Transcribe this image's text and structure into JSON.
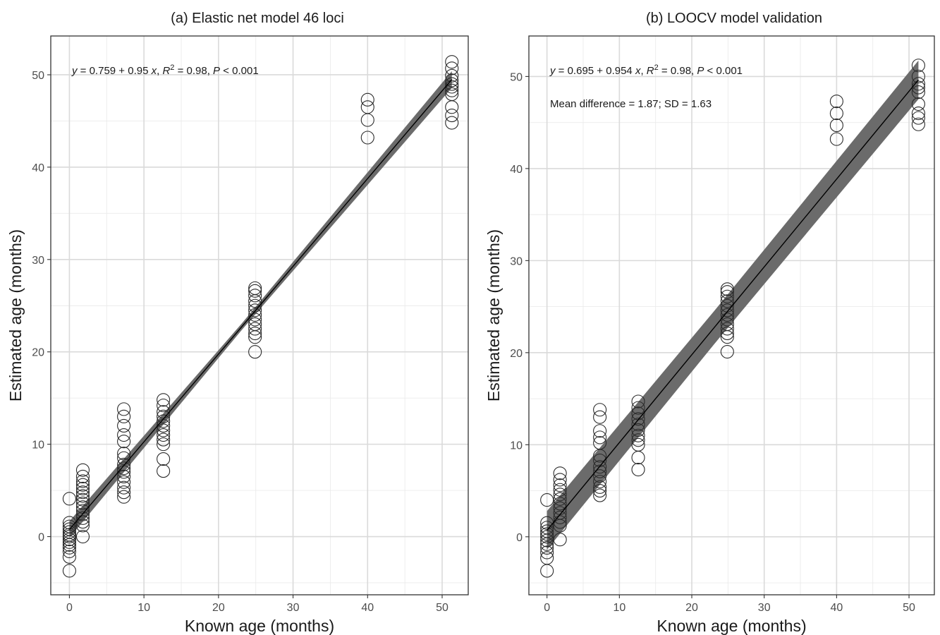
{
  "chart_data": [
    {
      "type": "scatter",
      "title": "(a) Elastic net model 46 loci",
      "xlabel": "Known age (months)",
      "ylabel": "Estimated age (months)",
      "xlim": [
        -2.5,
        53.5
      ],
      "ylim": [
        -6.3,
        54.2
      ],
      "x_ticks": [
        0,
        10,
        20,
        30,
        40,
        50
      ],
      "y_ticks": [
        0,
        10,
        20,
        30,
        40,
        50
      ],
      "grid": true,
      "annotations": [
        {
          "segments": [
            {
              "text": "y",
              "italic": true
            },
            {
              "text": " = 0.759 + 0.95 "
            },
            {
              "text": "x",
              "italic": true
            },
            {
              "text": ", "
            },
            {
              "text": "R",
              "italic": true
            },
            {
              "text": "2",
              "sup": true
            },
            {
              "text": " = 0.98, "
            },
            {
              "text": "P",
              "italic": true
            },
            {
              "text": " < 0.001"
            }
          ]
        }
      ],
      "fit": {
        "intercept": 0.759,
        "slope": 0.95,
        "x_range": [
          0,
          51.3
        ],
        "band_half_width": [
          0.35,
          0.9
        ]
      },
      "groups": [
        {
          "x": 0,
          "y": [
            4.1,
            1.5,
            1.1,
            0.8,
            0.5,
            0.2,
            0.0,
            -0.3,
            -0.6,
            -0.9,
            -1.2,
            -1.6,
            -2.2,
            -3.7
          ]
        },
        {
          "x": 1.8,
          "y": [
            7.2,
            6.5,
            6.0,
            5.6,
            5.2,
            4.8,
            4.4,
            4.0,
            3.6,
            3.2,
            2.8,
            2.4,
            2.0,
            1.6,
            1.2,
            0.0
          ]
        },
        {
          "x": 7.3,
          "y": [
            13.8,
            13.0,
            12.0,
            11.0,
            10.3,
            9.0,
            8.5,
            7.8,
            7.4,
            7.0,
            6.5,
            5.9,
            5.3,
            4.8,
            4.3
          ]
        },
        {
          "x": 12.6,
          "y": [
            14.8,
            14.2,
            13.5,
            13.0,
            12.5,
            12.0,
            11.5,
            11.0,
            10.5,
            10.0,
            8.4,
            7.1
          ]
        },
        {
          "x": 24.9,
          "y": [
            26.9,
            26.6,
            26.1,
            25.5,
            25.0,
            24.5,
            24.0,
            23.5,
            23.0,
            22.5,
            22.0,
            21.6,
            20.0
          ]
        },
        {
          "x": 40.0,
          "y": [
            47.3,
            46.5,
            45.1,
            43.2
          ]
        },
        {
          "x": 51.3,
          "y": [
            51.4,
            50.7,
            49.9,
            49.4,
            49.0,
            48.7,
            48.3,
            47.9,
            46.5,
            45.6,
            44.8
          ]
        }
      ]
    },
    {
      "type": "scatter",
      "title": "(b) LOOCV model validation",
      "xlabel": "Known age (months)",
      "ylabel": "Estimated age (months)",
      "xlim": [
        -2.5,
        53.5
      ],
      "ylim": [
        -6.3,
        54.4
      ],
      "x_ticks": [
        0,
        10,
        20,
        30,
        40,
        50
      ],
      "y_ticks": [
        0,
        10,
        20,
        30,
        40,
        50
      ],
      "grid": true,
      "annotations": [
        {
          "segments": [
            {
              "text": "y",
              "italic": true
            },
            {
              "text": " = 0.695 + 0.954 "
            },
            {
              "text": "x",
              "italic": true
            },
            {
              "text": ", "
            },
            {
              "text": "R",
              "italic": true
            },
            {
              "text": "2",
              "sup": true
            },
            {
              "text": " = 0.98, "
            },
            {
              "text": "P",
              "italic": true
            },
            {
              "text": " < 0.001"
            }
          ]
        },
        {
          "segments": [
            {
              "text": "Mean difference = 1.87; SD = 1.63"
            }
          ]
        }
      ],
      "fit": {
        "intercept": 0.695,
        "slope": 0.954,
        "x_range": [
          0,
          51.3
        ],
        "band_half_width": [
          1.8,
          2.1
        ]
      },
      "groups": [
        {
          "x": 0,
          "y": [
            4.0,
            1.5,
            1.0,
            0.6,
            0.3,
            0.0,
            -0.4,
            -0.8,
            -1.2,
            -1.7,
            -2.3,
            -3.7
          ]
        },
        {
          "x": 1.8,
          "y": [
            6.9,
            6.2,
            5.6,
            5.1,
            4.6,
            4.1,
            3.6,
            3.1,
            2.6,
            2.1,
            1.6,
            1.2,
            -0.3
          ]
        },
        {
          "x": 7.3,
          "y": [
            13.8,
            13.0,
            11.5,
            10.8,
            10.2,
            8.8,
            8.3,
            7.6,
            7.1,
            6.6,
            6.0,
            5.4,
            5.0,
            4.5
          ]
        },
        {
          "x": 12.6,
          "y": [
            14.7,
            14.0,
            13.4,
            12.8,
            12.2,
            11.6,
            11.0,
            10.5,
            10.0,
            8.6,
            7.3
          ]
        },
        {
          "x": 24.9,
          "y": [
            26.9,
            26.6,
            26.1,
            25.6,
            25.1,
            24.6,
            24.1,
            23.6,
            23.1,
            22.6,
            22.1,
            21.7,
            20.1
          ]
        },
        {
          "x": 40.0,
          "y": [
            47.3,
            46.0,
            44.7,
            43.2
          ]
        },
        {
          "x": 51.3,
          "y": [
            51.2,
            50.0,
            49.2,
            48.8,
            48.3,
            47.0,
            46.0,
            45.5,
            44.8
          ]
        }
      ]
    }
  ]
}
